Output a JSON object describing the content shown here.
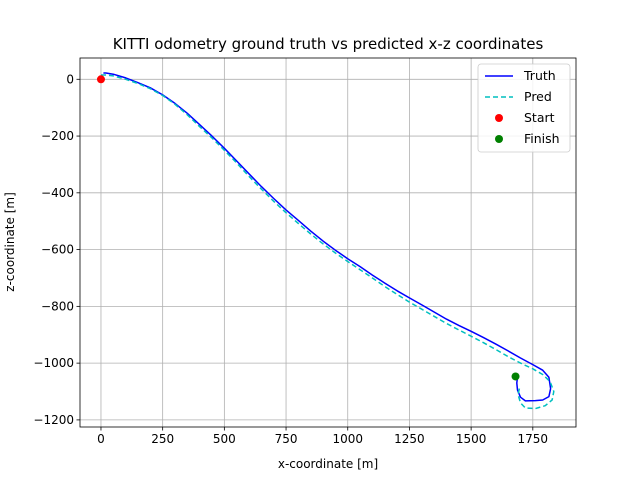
{
  "chart_data": {
    "type": "line",
    "title": "KITTI odometry ground truth vs predicted x-z coordinates",
    "xlabel": "x-coordinate [m]",
    "ylabel": "z-coordinate [m]",
    "xlim": [
      -85,
      1925
    ],
    "ylim": [
      -1225,
      75
    ],
    "xticks": [
      0,
      250,
      500,
      750,
      1000,
      1250,
      1500,
      1750
    ],
    "yticks": [
      0,
      -200,
      -400,
      -600,
      -800,
      -1000,
      -1200
    ],
    "xtick_labels": [
      "0",
      "250",
      "500",
      "750",
      "1000",
      "1250",
      "1500",
      "1750"
    ],
    "ytick_labels": [
      "0",
      "−200",
      "−400",
      "−600",
      "−800",
      "−1000",
      "−1200"
    ],
    "grid": true,
    "legend_position": "top-right",
    "series": [
      {
        "name": "Truth",
        "color": "#0000ff",
        "style": "solid",
        "points": [
          [
            10,
            22
          ],
          [
            20,
            22
          ],
          [
            50,
            18
          ],
          [
            100,
            5
          ],
          [
            150,
            -12
          ],
          [
            200,
            -30
          ],
          [
            250,
            -55
          ],
          [
            300,
            -85
          ],
          [
            350,
            -120
          ],
          [
            400,
            -160
          ],
          [
            450,
            -200
          ],
          [
            500,
            -243
          ],
          [
            550,
            -288
          ],
          [
            600,
            -333
          ],
          [
            650,
            -378
          ],
          [
            700,
            -420
          ],
          [
            750,
            -460
          ],
          [
            800,
            -497
          ],
          [
            850,
            -535
          ],
          [
            900,
            -570
          ],
          [
            950,
            -602
          ],
          [
            1000,
            -632
          ],
          [
            1050,
            -660
          ],
          [
            1100,
            -690
          ],
          [
            1150,
            -718
          ],
          [
            1200,
            -745
          ],
          [
            1250,
            -770
          ],
          [
            1300,
            -795
          ],
          [
            1350,
            -820
          ],
          [
            1400,
            -845
          ],
          [
            1450,
            -867
          ],
          [
            1500,
            -888
          ],
          [
            1550,
            -910
          ],
          [
            1600,
            -933
          ],
          [
            1650,
            -957
          ],
          [
            1700,
            -982
          ],
          [
            1750,
            -1005
          ],
          [
            1790,
            -1025
          ],
          [
            1815,
            -1050
          ],
          [
            1822,
            -1090
          ],
          [
            1815,
            -1118
          ],
          [
            1790,
            -1130
          ],
          [
            1760,
            -1132
          ],
          [
            1720,
            -1133
          ],
          [
            1700,
            -1120
          ],
          [
            1688,
            -1095
          ],
          [
            1685,
            -1070
          ],
          [
            1688,
            -1050
          ]
        ]
      },
      {
        "name": "Pred",
        "color": "#00bfbf",
        "style": "dashed",
        "points": [
          [
            0,
            15
          ],
          [
            20,
            15
          ],
          [
            50,
            12
          ],
          [
            100,
            0
          ],
          [
            150,
            -15
          ],
          [
            200,
            -33
          ],
          [
            250,
            -57
          ],
          [
            300,
            -88
          ],
          [
            350,
            -125
          ],
          [
            400,
            -167
          ],
          [
            450,
            -207
          ],
          [
            500,
            -250
          ],
          [
            550,
            -295
          ],
          [
            600,
            -342
          ],
          [
            650,
            -387
          ],
          [
            700,
            -430
          ],
          [
            750,
            -470
          ],
          [
            800,
            -508
          ],
          [
            850,
            -545
          ],
          [
            900,
            -580
          ],
          [
            950,
            -612
          ],
          [
            1000,
            -642
          ],
          [
            1050,
            -671
          ],
          [
            1100,
            -700
          ],
          [
            1150,
            -730
          ],
          [
            1200,
            -758
          ],
          [
            1250,
            -785
          ],
          [
            1300,
            -810
          ],
          [
            1350,
            -835
          ],
          [
            1400,
            -860
          ],
          [
            1450,
            -883
          ],
          [
            1500,
            -905
          ],
          [
            1550,
            -928
          ],
          [
            1600,
            -952
          ],
          [
            1650,
            -977
          ],
          [
            1700,
            -1000
          ],
          [
            1750,
            -1020
          ],
          [
            1790,
            -1040
          ],
          [
            1820,
            -1065
          ],
          [
            1835,
            -1100
          ],
          [
            1828,
            -1130
          ],
          [
            1800,
            -1150
          ],
          [
            1760,
            -1160
          ],
          [
            1720,
            -1158
          ],
          [
            1700,
            -1140
          ],
          [
            1690,
            -1110
          ],
          [
            1697,
            -1085
          ]
        ]
      }
    ],
    "markers": [
      {
        "name": "Start",
        "color": "#ff0000",
        "x": 0,
        "y": 0
      },
      {
        "name": "Finish",
        "color": "#008000",
        "x": 1680,
        "y": -1047
      }
    ]
  }
}
